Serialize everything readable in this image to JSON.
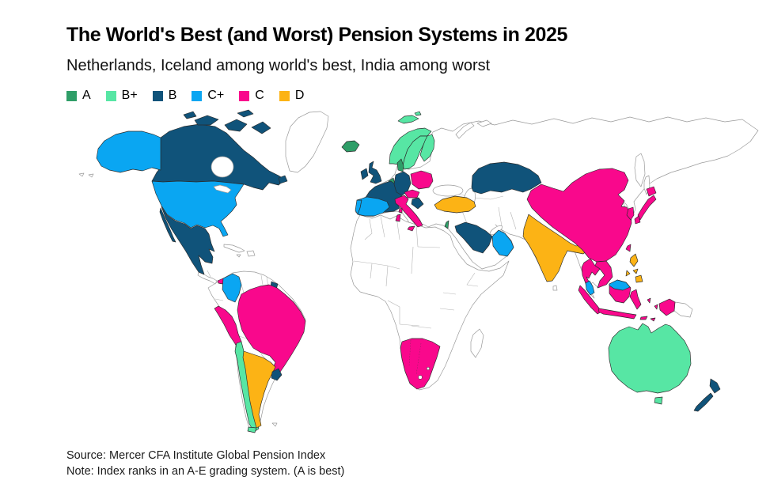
{
  "header": {
    "title": "The World's Best (and Worst) Pension Systems in 2025",
    "subtitle": "Netherlands, Iceland among world's best, India among worst"
  },
  "legend": {
    "items": [
      {
        "grade": "A",
        "color": "#2f9e68"
      },
      {
        "grade": "B+",
        "color": "#57e6a4"
      },
      {
        "grade": "B",
        "color": "#10537a"
      },
      {
        "grade": "C+",
        "color": "#0aa6f2"
      },
      {
        "grade": "C",
        "color": "#f9088c"
      },
      {
        "grade": "D",
        "color": "#fcb315"
      }
    ]
  },
  "footer": {
    "source": "Source: Mercer CFA Institute Global Pension Index",
    "note": "Note: Index ranks in an A-E grading system. (A is best)"
  },
  "chart_data": {
    "type": "choropleth",
    "title": "The World's Best (and Worst) Pension Systems in 2025",
    "subtitle": "Netherlands, Iceland among world's best, India among worst",
    "source": "Mercer CFA Institute Global Pension Index",
    "grading_note": "Index ranks in an A-E grading system. (A is best)",
    "unrated_fill": "#ffffff",
    "legend": [
      {
        "grade": "A",
        "color": "#2f9e68"
      },
      {
        "grade": "B+",
        "color": "#57e6a4"
      },
      {
        "grade": "B",
        "color": "#10537a"
      },
      {
        "grade": "C+",
        "color": "#0aa6f2"
      },
      {
        "grade": "C",
        "color": "#f9088c"
      },
      {
        "grade": "D",
        "color": "#fcb315"
      }
    ],
    "countries": [
      {
        "id": "netherlands",
        "name": "Netherlands",
        "grade": "A"
      },
      {
        "id": "iceland",
        "name": "Iceland",
        "grade": "A"
      },
      {
        "id": "denmark",
        "name": "Denmark",
        "grade": "A"
      },
      {
        "id": "israel",
        "name": "Israel",
        "grade": "A"
      },
      {
        "id": "norway",
        "name": "Norway",
        "grade": "B+"
      },
      {
        "id": "sweden",
        "name": "Sweden",
        "grade": "B+"
      },
      {
        "id": "finland",
        "name": "Finland",
        "grade": "B+"
      },
      {
        "id": "chile",
        "name": "Chile",
        "grade": "B+"
      },
      {
        "id": "australia",
        "name": "Australia",
        "grade": "B+"
      },
      {
        "id": "canada",
        "name": "Canada",
        "grade": "B"
      },
      {
        "id": "mexico",
        "name": "Mexico",
        "grade": "B"
      },
      {
        "id": "united-kingdom",
        "name": "United Kingdom",
        "grade": "B"
      },
      {
        "id": "ireland",
        "name": "Ireland",
        "grade": "B"
      },
      {
        "id": "france",
        "name": "France",
        "grade": "B"
      },
      {
        "id": "belgium",
        "name": "Belgium",
        "grade": "B"
      },
      {
        "id": "switzerland",
        "name": "Switzerland",
        "grade": "B"
      },
      {
        "id": "germany",
        "name": "Germany",
        "grade": "B"
      },
      {
        "id": "croatia",
        "name": "Croatia",
        "grade": "B"
      },
      {
        "id": "uruguay",
        "name": "Uruguay",
        "grade": "B"
      },
      {
        "id": "french-guiana",
        "name": "French Guiana (France)",
        "grade": "B"
      },
      {
        "id": "kazakhstan",
        "name": "Kazakhstan",
        "grade": "B"
      },
      {
        "id": "saudi-arabia",
        "name": "Saudi Arabia",
        "grade": "B"
      },
      {
        "id": "new-zealand",
        "name": "New Zealand",
        "grade": "B"
      },
      {
        "id": "united-states",
        "name": "United States",
        "grade": "C+"
      },
      {
        "id": "colombia",
        "name": "Colombia",
        "grade": "C+"
      },
      {
        "id": "spain",
        "name": "Spain",
        "grade": "C+"
      },
      {
        "id": "portugal",
        "name": "Portugal",
        "grade": "C+"
      },
      {
        "id": "united-arab-emirates",
        "name": "United Arab Emirates",
        "grade": "C+"
      },
      {
        "id": "malaysia",
        "name": "Malaysia",
        "grade": "C+"
      },
      {
        "id": "panama",
        "name": "Panama",
        "grade": "C"
      },
      {
        "id": "peru",
        "name": "Peru",
        "grade": "C"
      },
      {
        "id": "brazil",
        "name": "Brazil",
        "grade": "C"
      },
      {
        "id": "namibia",
        "name": "Namibia",
        "grade": "C"
      },
      {
        "id": "botswana",
        "name": "Botswana",
        "grade": "C"
      },
      {
        "id": "south-africa",
        "name": "South Africa",
        "grade": "C"
      },
      {
        "id": "poland",
        "name": "Poland",
        "grade": "C"
      },
      {
        "id": "austria",
        "name": "Austria",
        "grade": "C"
      },
      {
        "id": "italy",
        "name": "Italy",
        "grade": "C"
      },
      {
        "id": "china",
        "name": "China",
        "grade": "C"
      },
      {
        "id": "japan",
        "name": "Japan",
        "grade": "C"
      },
      {
        "id": "south-korea",
        "name": "South Korea",
        "grade": "C"
      },
      {
        "id": "taiwan",
        "name": "Taiwan",
        "grade": "C"
      },
      {
        "id": "thailand",
        "name": "Thailand",
        "grade": "C"
      },
      {
        "id": "vietnam",
        "name": "Vietnam",
        "grade": "C"
      },
      {
        "id": "indonesia",
        "name": "Indonesia",
        "grade": "C"
      },
      {
        "id": "argentina",
        "name": "Argentina",
        "grade": "D"
      },
      {
        "id": "turkey",
        "name": "Turkey",
        "grade": "D"
      },
      {
        "id": "india",
        "name": "India",
        "grade": "D"
      },
      {
        "id": "philippines",
        "name": "Philippines",
        "grade": "D"
      }
    ]
  }
}
